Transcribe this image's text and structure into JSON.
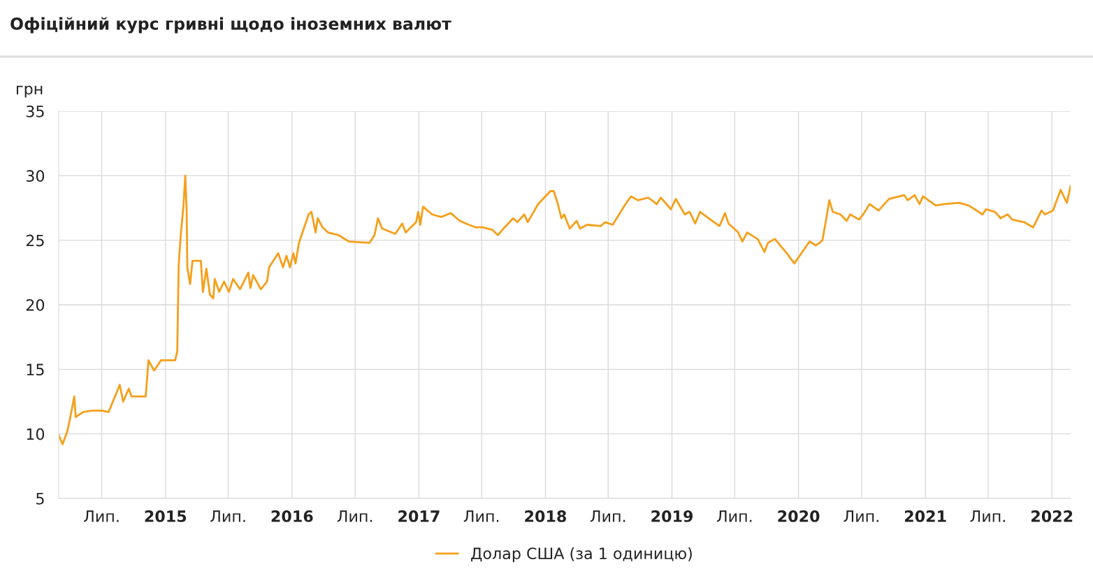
{
  "chart_data": {
    "type": "line",
    "title": "Офіційний курс гривні щодо іноземних валют",
    "ylabel": "грн",
    "xlim": [
      "2014-02-27",
      "2022-02-24"
    ],
    "xticks": [
      {
        "value": "2014-07-01",
        "label": "Лип."
      },
      {
        "value": "2015-01-01",
        "label": "2015"
      },
      {
        "value": "2015-07-01",
        "label": "Лип."
      },
      {
        "value": "2016-01-01",
        "label": "2016"
      },
      {
        "value": "2016-07-01",
        "label": "Лип."
      },
      {
        "value": "2017-01-01",
        "label": "2017"
      },
      {
        "value": "2017-07-01",
        "label": "Лип."
      },
      {
        "value": "2018-01-01",
        "label": "2018"
      },
      {
        "value": "2018-07-01",
        "label": "Лип."
      },
      {
        "value": "2019-01-01",
        "label": "2019"
      },
      {
        "value": "2019-07-01",
        "label": "Лип."
      },
      {
        "value": "2020-01-01",
        "label": "2020"
      },
      {
        "value": "2020-07-01",
        "label": "Лип."
      },
      {
        "value": "2021-01-01",
        "label": "2021"
      },
      {
        "value": "2021-07-01",
        "label": "Лип."
      },
      {
        "value": "2022-01-01",
        "label": "2022"
      }
    ],
    "ylim": [
      5,
      35
    ],
    "yticks": [
      5,
      10,
      15,
      20,
      25,
      30,
      35
    ],
    "grid": true,
    "legend": "bottom",
    "marker": "none",
    "line_style": "solid",
    "x": [
      "2014-02-27",
      "2014-03-10",
      "2014-03-24",
      "2014-04-03",
      "2014-04-13",
      "2014-04-17",
      "2014-05-09",
      "2014-06-04",
      "2014-07-01",
      "2014-07-21",
      "2014-08-10",
      "2014-08-22",
      "2014-09-01",
      "2014-09-17",
      "2014-09-25",
      "2014-11-05",
      "2014-11-13",
      "2014-11-29",
      "2014-12-19",
      "2015-01-29",
      "2015-02-04",
      "2015-02-08",
      "2015-02-14",
      "2015-02-22",
      "2015-02-27",
      "2015-03-03",
      "2015-03-05",
      "2015-03-13",
      "2015-03-20",
      "2015-04-13",
      "2015-04-19",
      "2015-04-29",
      "2015-05-09",
      "2015-05-19",
      "2015-05-23",
      "2015-06-05",
      "2015-06-19",
      "2015-07-03",
      "2015-07-15",
      "2015-08-04",
      "2015-08-28",
      "2015-09-03",
      "2015-09-11",
      "2015-10-03",
      "2015-10-21",
      "2015-10-27",
      "2015-11-22",
      "2015-12-06",
      "2015-12-16",
      "2015-12-26",
      "2016-01-05",
      "2016-01-11",
      "2016-01-21",
      "2016-02-04",
      "2016-02-18",
      "2016-02-26",
      "2016-03-09",
      "2016-03-15",
      "2016-03-29",
      "2016-04-14",
      "2016-05-14",
      "2016-06-13",
      "2016-08-12",
      "2016-08-26",
      "2016-09-05",
      "2016-09-17",
      "2016-10-25",
      "2016-11-14",
      "2016-11-24",
      "2016-12-24",
      "2016-12-30",
      "2017-01-05",
      "2017-01-13",
      "2017-02-08",
      "2017-03-06",
      "2017-04-03",
      "2017-04-29",
      "2017-05-25",
      "2017-06-14",
      "2017-07-04",
      "2017-08-01",
      "2017-08-17",
      "2017-09-02",
      "2017-09-30",
      "2017-10-12",
      "2017-11-01",
      "2017-11-11",
      "2017-12-11",
      "2018-01-15",
      "2018-01-25",
      "2018-02-06",
      "2018-02-16",
      "2018-02-24",
      "2018-03-12",
      "2018-04-01",
      "2018-04-11",
      "2018-05-01",
      "2018-06-10",
      "2018-06-22",
      "2018-07-14",
      "2018-08-20",
      "2018-09-05",
      "2018-09-25",
      "2018-10-25",
      "2018-11-18",
      "2018-11-30",
      "2018-12-29",
      "2019-01-12",
      "2019-02-07",
      "2019-02-21",
      "2019-03-09",
      "2019-03-23",
      "2019-04-22",
      "2019-05-18",
      "2019-06-03",
      "2019-06-13",
      "2019-07-11",
      "2019-07-23",
      "2019-08-06",
      "2019-09-05",
      "2019-09-25",
      "2019-10-05",
      "2019-10-25",
      "2019-11-28",
      "2019-12-20",
      "2020-01-07",
      "2020-02-02",
      "2020-02-20",
      "2020-03-02",
      "2020-03-10",
      "2020-03-20",
      "2020-03-30",
      "2020-04-09",
      "2020-05-01",
      "2020-05-19",
      "2020-05-29",
      "2020-06-24",
      "2020-07-08",
      "2020-07-24",
      "2020-08-19",
      "2020-09-18",
      "2020-11-01",
      "2020-11-11",
      "2020-12-01",
      "2020-12-15",
      "2020-12-25",
      "2021-01-31",
      "2021-02-26",
      "2021-04-08",
      "2021-05-06",
      "2021-06-15",
      "2021-06-25",
      "2021-07-21",
      "2021-08-06",
      "2021-08-26",
      "2021-09-09",
      "2021-10-13",
      "2021-11-08",
      "2021-12-02",
      "2021-12-12",
      "2022-01-04",
      "2022-01-26",
      "2022-02-13",
      "2022-02-24"
    ],
    "series": [
      {
        "name": "Долар США (за 1 одиницю)",
        "color": "#f59f1a",
        "values": [
          9.9,
          9.2,
          10.2,
          11.5,
          12.9,
          11.3,
          11.7,
          11.8,
          11.8,
          11.7,
          13.0,
          13.8,
          12.5,
          13.5,
          12.9,
          12.9,
          15.7,
          14.9,
          15.7,
          15.7,
          16.4,
          23.0,
          25.4,
          27.7,
          30.0,
          27.4,
          22.9,
          21.6,
          23.4,
          23.4,
          21.0,
          22.8,
          20.8,
          20.5,
          22.0,
          21.0,
          21.8,
          21.0,
          22.0,
          21.2,
          22.5,
          21.3,
          22.3,
          21.2,
          21.8,
          22.9,
          24.0,
          22.9,
          23.8,
          22.9,
          24.0,
          23.2,
          24.8,
          25.9,
          27.0,
          27.2,
          25.6,
          26.7,
          26.0,
          25.6,
          25.4,
          24.9,
          24.8,
          25.4,
          26.7,
          25.9,
          25.5,
          26.3,
          25.6,
          26.4,
          27.2,
          26.2,
          27.6,
          27.0,
          26.8,
          27.1,
          26.5,
          26.2,
          26.0,
          26.0,
          25.8,
          25.4,
          25.9,
          26.7,
          26.4,
          27.0,
          26.4,
          27.8,
          28.8,
          28.8,
          27.8,
          26.7,
          27.0,
          25.9,
          26.5,
          25.9,
          26.2,
          26.1,
          26.4,
          26.2,
          27.8,
          28.4,
          28.1,
          28.3,
          27.8,
          28.3,
          27.4,
          28.2,
          27.0,
          27.2,
          26.3,
          27.2,
          26.6,
          26.1,
          27.1,
          26.3,
          25.6,
          24.9,
          25.6,
          25.1,
          24.1,
          24.8,
          25.1,
          24.0,
          23.2,
          23.9,
          24.9,
          24.6,
          24.8,
          25.0,
          26.5,
          28.1,
          27.2,
          27.0,
          26.5,
          27.0,
          26.6,
          27.1,
          27.8,
          27.3,
          28.2,
          28.5,
          28.1,
          28.5,
          27.8,
          28.4,
          27.7,
          27.8,
          27.9,
          27.7,
          27.0,
          27.4,
          27.2,
          26.7,
          27.0,
          26.6,
          26.4,
          26.0,
          27.3,
          27.0,
          27.3,
          28.9,
          27.9,
          29.2
        ]
      }
    ]
  }
}
